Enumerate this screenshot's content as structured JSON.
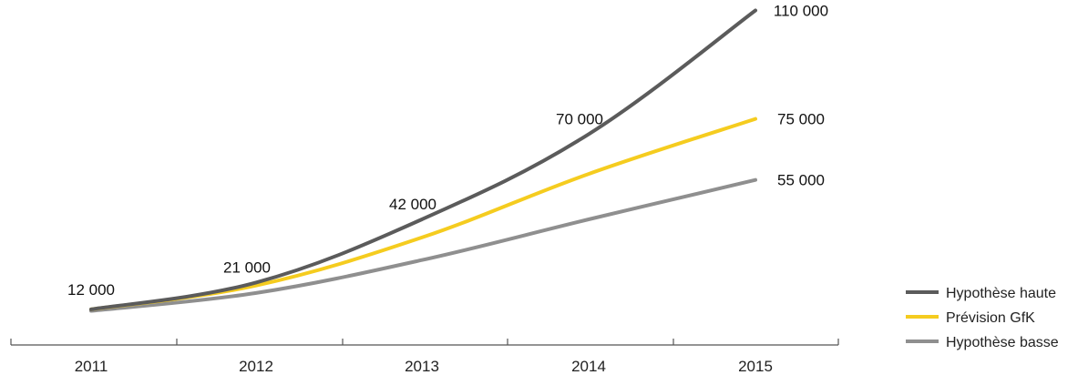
{
  "chart_data": {
    "type": "line",
    "categories": [
      "2011",
      "2012",
      "2013",
      "2014",
      "2015"
    ],
    "ylim": [
      0,
      120000
    ],
    "grid": false,
    "legend_position": "bottom-right",
    "series": [
      {
        "name": "Hypothèse haute",
        "color": "#5b5b5b",
        "values": [
          12000,
          21000,
          42000,
          70000,
          110000
        ],
        "labels": [
          "12 000",
          "21 000",
          "42 000",
          "70 000",
          "110 000"
        ]
      },
      {
        "name": "Prévision GfK",
        "color": "#f5cc1f",
        "values": [
          12000,
          20000,
          36000,
          57000,
          75000
        ],
        "labels": [
          "",
          "",
          "",
          "",
          "75 000"
        ]
      },
      {
        "name": "Hypothèse basse",
        "color": "#8f8f8f",
        "values": [
          11500,
          17500,
          28500,
          42000,
          55000
        ],
        "labels": [
          "",
          "",
          "",
          "",
          "55 000"
        ]
      }
    ]
  }
}
